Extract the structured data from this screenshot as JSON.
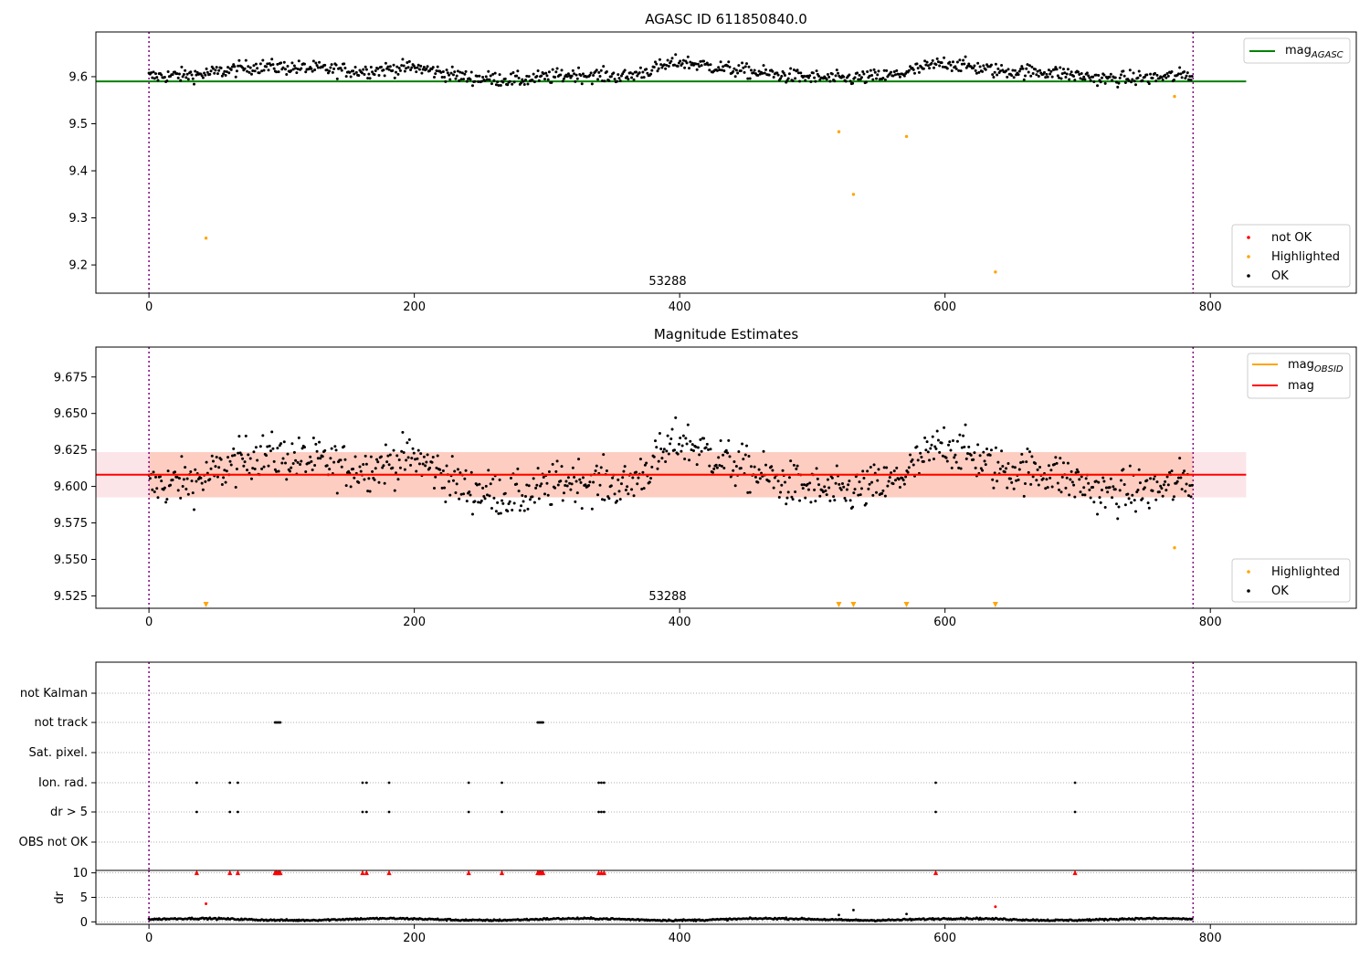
{
  "chart_data": [
    {
      "type": "scatter",
      "title": "AGASC ID 611850840.0",
      "xlabel": "",
      "ylabel": "",
      "xlim": [
        -40,
        910
      ],
      "ylim": [
        9.14,
        9.695
      ],
      "xticks": [
        0,
        200,
        400,
        600,
        800
      ],
      "yticks": [
        9.2,
        9.3,
        9.4,
        9.5,
        9.6
      ],
      "ytick_labels": [
        "9.2",
        "9.3",
        "9.4",
        "9.5",
        "9.6"
      ],
      "vlines": [
        0,
        787
      ],
      "annotation": {
        "text": "53288",
        "x": 393
      },
      "reference_line": {
        "name": "mag",
        "subscript": "AGASC",
        "y": 9.59,
        "x": [
          -40,
          827
        ],
        "color": "#008000"
      },
      "series": [
        {
          "name": "not OK",
          "color": "#ff0000",
          "x": [],
          "y": []
        },
        {
          "name": "Highlighted",
          "color": "#ffa500",
          "x": [
            43,
            520,
            531,
            571,
            638,
            773
          ],
          "y": [
            9.257,
            9.483,
            9.35,
            9.473,
            9.185,
            9.558
          ]
        },
        {
          "name": "OK",
          "color": "#000000",
          "trend_x": [
            0,
            40,
            80,
            120,
            160,
            200,
            240,
            280,
            320,
            360,
            400,
            440,
            480,
            520,
            560,
            600,
            640,
            680,
            720,
            760,
            787
          ],
          "trend_y": [
            9.6,
            9.605,
            9.622,
            9.618,
            9.612,
            9.62,
            9.598,
            9.593,
            9.605,
            9.6,
            9.632,
            9.615,
            9.602,
            9.595,
            9.602,
            9.63,
            9.612,
            9.61,
            9.595,
            9.598,
            9.605
          ]
        }
      ],
      "legend": [
        {
          "label": "not OK",
          "marker": "dot",
          "color": "#ff0000"
        },
        {
          "label": "Highlighted",
          "marker": "dot",
          "color": "#ffa500"
        },
        {
          "label": "OK",
          "marker": "dot",
          "color": "#000000"
        }
      ],
      "legend_placement": "lower-right",
      "line_legend_placement": "upper-right"
    },
    {
      "type": "scatter",
      "title": "Magnitude Estimates",
      "xlabel": "",
      "ylabel": "",
      "xlim": [
        -40,
        910
      ],
      "ylim": [
        9.5165,
        9.6955
      ],
      "xticks": [
        0,
        200,
        400,
        600,
        800
      ],
      "yticks": [
        9.525,
        9.55,
        9.575,
        9.6,
        9.625,
        9.65,
        9.675
      ],
      "ytick_labels": [
        "9.525",
        "9.550",
        "9.575",
        "9.600",
        "9.625",
        "9.650",
        "9.675"
      ],
      "vlines": [
        0,
        787
      ],
      "annotation": {
        "text": "53288",
        "x": 393
      },
      "bands": [
        {
          "color": "#f5b5c0",
          "opacity": 0.35,
          "y0": 9.5925,
          "y1": 9.6235,
          "x0": -40,
          "x1": 827
        },
        {
          "color": "#ffa07a",
          "opacity": 0.35,
          "y0": 9.5925,
          "y1": 9.6235,
          "x0": 0,
          "x1": 787
        }
      ],
      "lines": [
        {
          "name": "mag",
          "subscript": "OBSID",
          "color": "#ffa500",
          "y": 9.608,
          "x": [
            0,
            787
          ]
        },
        {
          "name": "mag",
          "subscript": "",
          "color": "#ff0000",
          "y": 9.608,
          "x": [
            -40,
            827
          ]
        }
      ],
      "series": [
        {
          "name": "Highlighted",
          "color": "#ffa500",
          "x": [
            773
          ],
          "y": [
            9.558
          ]
        },
        {
          "name": "OK",
          "color": "#000000",
          "trend_x": [
            0,
            40,
            80,
            120,
            160,
            200,
            240,
            280,
            320,
            360,
            400,
            440,
            480,
            520,
            560,
            600,
            640,
            680,
            720,
            760,
            787
          ],
          "trend_y": [
            9.6,
            9.605,
            9.622,
            9.618,
            9.612,
            9.62,
            9.598,
            9.593,
            9.605,
            9.6,
            9.632,
            9.615,
            9.602,
            9.595,
            9.602,
            9.63,
            9.612,
            9.61,
            9.595,
            9.598,
            9.605
          ]
        }
      ],
      "out_of_range_markers": {
        "color": "#ffa500",
        "marker": "triangle-down",
        "x": [
          43,
          520,
          531,
          571,
          638
        ]
      },
      "legend": [
        {
          "label": "Highlighted",
          "marker": "dot",
          "color": "#ffa500"
        },
        {
          "label": "OK",
          "marker": "dot",
          "color": "#000000"
        }
      ],
      "legend_placement": "lower-right",
      "line_legend_placement": "upper-right"
    },
    {
      "type": "scatter",
      "title": "",
      "xlabel": "",
      "ylabel": "",
      "xlim": [
        -40,
        910
      ],
      "categories": [
        "not Kalman",
        "not track",
        "Sat. pixel.",
        "Ion. rad.",
        "dr > 5",
        "OBS not OK"
      ],
      "flags": {
        "not Kalman": [],
        "not track": [
          95,
          96,
          97,
          98,
          99,
          293,
          294,
          295,
          296,
          297
        ],
        "Sat. pixel.": [],
        "Ion. rad.": [
          36,
          61,
          67,
          161,
          164,
          181,
          241,
          266,
          339,
          341,
          343,
          593,
          698
        ],
        "dr > 5": [
          36,
          61,
          67,
          161,
          164,
          181,
          241,
          266,
          339,
          341,
          343,
          593,
          698
        ],
        "OBS not OK": []
      },
      "vlines": [
        0,
        787
      ]
    },
    {
      "type": "scatter",
      "title": "",
      "xlabel": "",
      "ylabel": "dr",
      "xlim": [
        -40,
        910
      ],
      "ylim": [
        -0.5,
        10.5
      ],
      "xticks": [
        0,
        200,
        400,
        600,
        800
      ],
      "yticks": [
        0,
        5,
        10
      ],
      "ytick_labels": [
        "0",
        "5",
        "10"
      ],
      "vlines": [
        0,
        787
      ],
      "clipped_markers": {
        "color": "#ff0000",
        "marker": "triangle-up",
        "y": 10,
        "x": [
          36,
          61,
          67,
          95,
          96,
          97,
          98,
          99,
          161,
          164,
          181,
          241,
          266,
          293,
          294,
          295,
          296,
          297,
          339,
          341,
          343,
          593,
          698
        ]
      },
      "series": [
        {
          "name": "OK",
          "color": "#000000",
          "typical_y": 0.5,
          "outliers": [
            {
              "x": 520,
              "y": 1.4
            },
            {
              "x": 531,
              "y": 2.4
            },
            {
              "x": 571,
              "y": 1.6
            }
          ]
        },
        {
          "name": "Highlighted",
          "color": "#ff0000",
          "x": [
            43,
            638
          ],
          "y": [
            3.7,
            3.1
          ]
        }
      ]
    }
  ]
}
